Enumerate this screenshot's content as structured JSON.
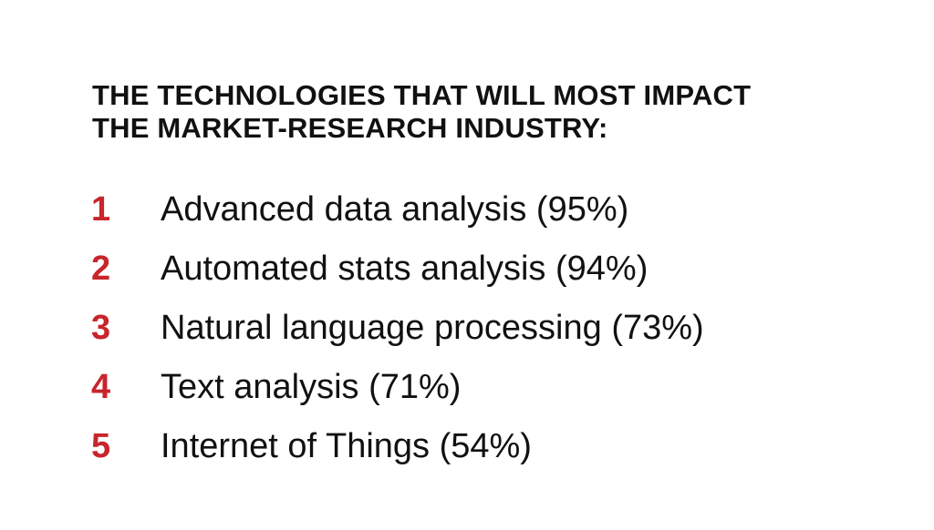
{
  "title": {
    "line1": "THE TECHNOLOGIES THAT WILL MOST IMPACT",
    "line2": "THE MARKET-RESEARCH INDUSTRY:"
  },
  "items": [
    {
      "number": "1",
      "label": "Advanced data analysis (95%)"
    },
    {
      "number": "2",
      "label": "Automated stats analysis (94%)"
    },
    {
      "number": "3",
      "label": "Natural language processing (73%)"
    },
    {
      "number": "4",
      "label": "Text analysis (71%)"
    },
    {
      "number": "5",
      "label": "Internet of Things (54%)"
    }
  ],
  "colors": {
    "accent": "#c8252c",
    "text": "#111111",
    "background": "#ffffff"
  }
}
